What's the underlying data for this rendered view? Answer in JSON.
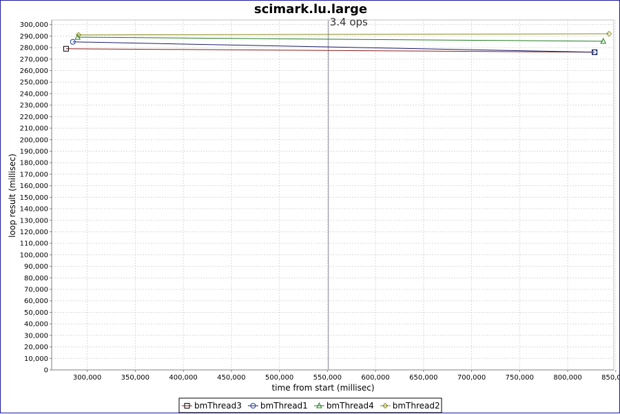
{
  "chart_data": {
    "type": "line",
    "title": "scimark.lu.large",
    "xlabel": "time from start (millisec)",
    "ylabel": "loop result (millisec)",
    "xlim": [
      263000,
      848000
    ],
    "ylim": [
      0,
      304000
    ],
    "x_ticks": [
      300000,
      350000,
      400000,
      450000,
      500000,
      550000,
      600000,
      650000,
      700000,
      750000,
      800000,
      850000
    ],
    "x_tick_labels": [
      "300,000",
      "350,000",
      "400,000",
      "450,000",
      "500,000",
      "550,000",
      "600,000",
      "650,000",
      "700,000",
      "750,000",
      "800,000",
      "850,000"
    ],
    "y_tick_step": 10000,
    "y_tick_max": 300000,
    "grid": true,
    "legend_position": "bottom",
    "series": [
      {
        "name": "bmThread3",
        "marker": "square",
        "color": "#8b1a1a",
        "marker_color": "#000000",
        "points": [
          [
            278000,
            279000
          ],
          [
            828000,
            276000
          ]
        ]
      },
      {
        "name": "bmThread1",
        "marker": "circle",
        "color": "#1a1a6e",
        "marker_color": "#1a3a9e",
        "points": [
          [
            285000,
            285000
          ],
          [
            828000,
            276000
          ]
        ]
      },
      {
        "name": "bmThread4",
        "marker": "triangle",
        "color": "#1f7a1f",
        "marker_color": "#1f7a1f",
        "points": [
          [
            290000,
            289000
          ],
          [
            837000,
            285500
          ]
        ]
      },
      {
        "name": "bmThread2",
        "marker": "diamond",
        "color": "#8a8a1a",
        "marker_color": "#8a8a1a",
        "points": [
          [
            291000,
            291000
          ],
          [
            843000,
            292000
          ]
        ]
      }
    ],
    "marker_line": {
      "x": 551000,
      "label": "3.4 ops"
    }
  }
}
